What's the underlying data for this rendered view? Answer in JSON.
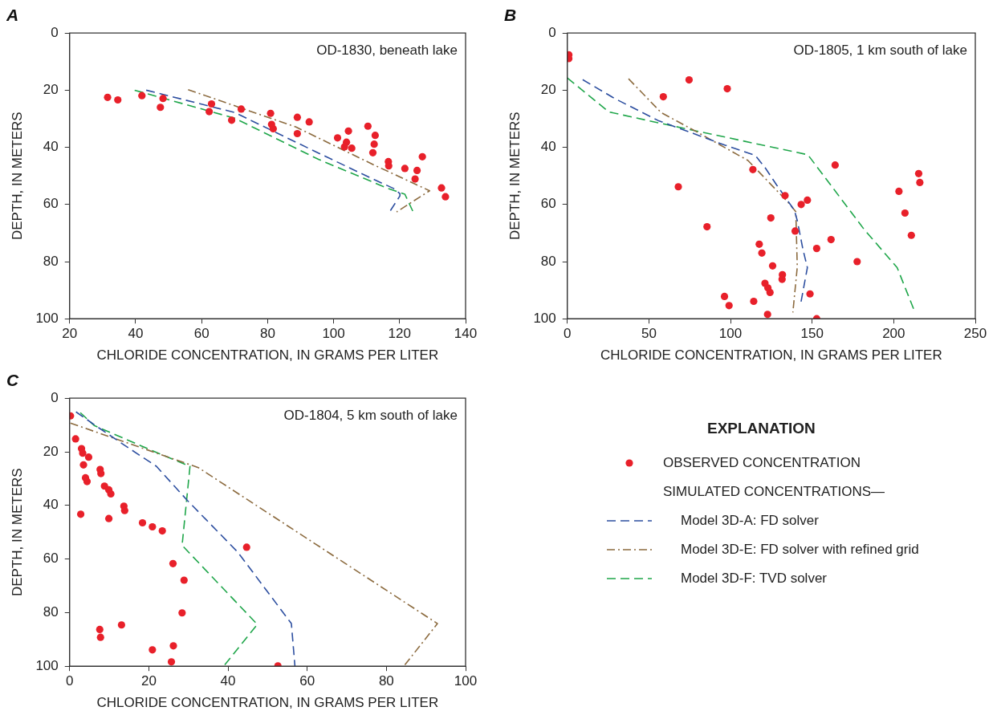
{
  "chart_data": [
    {
      "type": "scatter",
      "title": "A",
      "subtitle": "OD-1830, beneath lake",
      "xlabel": "CHLORIDE CONCENTRATION, IN GRAMS PER LITER",
      "ylabel": "DEPTH, IN METERS",
      "xlim": [
        20,
        140
      ],
      "xticks": [
        20,
        40,
        60,
        80,
        100,
        120,
        140
      ],
      "ylim": [
        100,
        0
      ],
      "yticks": [
        0,
        20,
        40,
        60,
        80,
        100
      ],
      "series": [
        {
          "marker": "circle",
          "color": "#e8202a",
          "x": [
            31.5,
            34.6,
            41.9,
            48.3,
            47.5,
            63.0,
            62.3,
            69.1,
            72.0,
            80.9,
            81.2,
            81.7,
            89.0,
            89.0,
            92.6,
            101.2,
            104.5,
            103.9,
            103.3,
            105.5,
            110.4,
            112.6,
            112.3,
            111.9,
            116.6,
            116.7,
            121.6,
            125.3,
            126.9,
            124.7,
            132.7,
            133.9
          ],
          "values": [
            22.5,
            23.4,
            21.9,
            22.9,
            26.0,
            24.8,
            27.5,
            30.5,
            26.6,
            28.1,
            32.0,
            33.5,
            29.5,
            35.2,
            31.1,
            36.7,
            34.3,
            38.2,
            39.8,
            40.3,
            32.6,
            35.8,
            38.9,
            41.9,
            45.0,
            46.5,
            47.4,
            48.1,
            43.3,
            51.1,
            54.2,
            57.3
          ]
        },
        {
          "type": "line",
          "line_style": "dashed",
          "color": "#2d4fa0",
          "x": [
            43.2,
            70.0,
            95.4,
            112.3,
            118.2,
            120.1,
            120.1,
            116.8
          ],
          "values": [
            20.0,
            27.8,
            42.0,
            51.3,
            54.4,
            56.2,
            57.0,
            62.9
          ]
        },
        {
          "type": "line",
          "line_style": "dashdot",
          "color": "#8c6b3f",
          "x": [
            55.9,
            88.6,
            112.3,
            129.1,
            119.1
          ],
          "values": [
            19.8,
            32.9,
            46.2,
            55.2,
            62.6
          ]
        },
        {
          "type": "line",
          "line_style": "dashed",
          "color": "#1fa64a",
          "x": [
            39.7,
            70.0,
            95.4,
            116.5,
            121.6,
            124.1
          ],
          "values": [
            20.0,
            29.8,
            44.2,
            54.4,
            56.4,
            62.6
          ]
        }
      ]
    },
    {
      "type": "scatter",
      "title": "B",
      "subtitle": "OD-1805, 1 km south of lake",
      "xlabel": "CHLORIDE CONCENTRATION, IN GRAMS PER LITER",
      "ylabel": "DEPTH, IN METERS",
      "xlim": [
        0,
        250
      ],
      "xticks": [
        0,
        50,
        100,
        150,
        200,
        250
      ],
      "ylim": [
        100,
        0
      ],
      "yticks": [
        0,
        20,
        40,
        60,
        80,
        100
      ],
      "series": [
        {
          "marker": "circle",
          "color": "#e8202a",
          "x": [
            0.9,
            0.9,
            74.6,
            98.0,
            58.8,
            164.1,
            113.7,
            68.0,
            215.3,
            216.0,
            203.2,
            133.4,
            147.1,
            143.3,
            124.7,
            206.9,
            85.6,
            139.6,
            210.8,
            161.6,
            117.6,
            152.8,
            119.2,
            177.6,
            125.8,
            131.8,
            131.6,
            121.1,
            122.9,
            124.2,
            148.7,
            96.3,
            114.2,
            99.1,
            122.7,
            152.8
          ],
          "values": [
            7.6,
            8.9,
            16.4,
            19.5,
            22.3,
            46.2,
            47.8,
            53.8,
            49.2,
            52.3,
            55.4,
            56.9,
            58.5,
            60.0,
            64.7,
            63.0,
            67.8,
            69.3,
            70.8,
            72.3,
            73.9,
            75.4,
            77.0,
            80.0,
            81.5,
            84.6,
            86.2,
            87.6,
            89.2,
            90.8,
            91.3,
            92.2,
            93.9,
            95.4,
            98.5,
            100.0
          ]
        },
        {
          "type": "line",
          "line_style": "dashed",
          "color": "#2d4fa0",
          "x": [
            9.4,
            29.0,
            55.6,
            96.4,
            115.1,
            121.3,
            128.4,
            139.1,
            140.9,
            144.4,
            147.1,
            143.0
          ],
          "values": [
            16.3,
            22.9,
            30.6,
            39.2,
            42.8,
            47.2,
            53.3,
            62.0,
            65.6,
            75.8,
            82.1,
            94.7
          ]
        },
        {
          "type": "line",
          "line_style": "dashdot",
          "color": "#8c6b3f",
          "x": [
            37.5,
            57.4,
            78.7,
            110.7,
            135.5,
            140.0,
            140.9,
            138.2
          ],
          "values": [
            16.0,
            27.8,
            34.4,
            44.6,
            59.4,
            62.5,
            81.9,
            97.8
          ]
        },
        {
          "type": "line",
          "line_style": "dashed",
          "color": "#1fa64a",
          "x": [
            0,
            25.4,
            55.6,
            147.4,
            181.7,
            202.1,
            212.3
          ],
          "values": [
            15.7,
            27.6,
            31.4,
            42.6,
            68.6,
            82.1,
            96.7
          ]
        }
      ]
    },
    {
      "type": "scatter",
      "title": "C",
      "subtitle": "OD-1804, 5 km south of lake",
      "xlabel": "CHLORIDE CONCENTRATION, IN GRAMS PER LITER",
      "ylabel": "DEPTH, IN METERS",
      "xlim": [
        0,
        100
      ],
      "xticks": [
        0,
        20,
        40,
        60,
        80,
        100
      ],
      "ylim": [
        100,
        0
      ],
      "yticks": [
        0,
        20,
        40,
        60,
        80,
        100
      ],
      "legend": "right",
      "legend_title": "EXPLANATION",
      "annotations": [
        "SIMULATED CONCENTRATIONS—"
      ],
      "series": [
        {
          "name": "OBSERVED CONCENTRATION",
          "marker": "circle",
          "color": "#e8202a",
          "x": [
            0.2,
            1.5,
            3.0,
            3.3,
            4.8,
            3.5,
            7.7,
            7.9,
            4.0,
            4.4,
            8.8,
            9.9,
            10.4,
            13.7,
            13.9,
            2.8,
            9.9,
            18.4,
            20.9,
            23.4,
            44.7,
            26.1,
            28.9,
            28.4,
            13.1,
            7.6,
            7.8,
            20.9,
            26.2,
            25.7,
            52.6
          ],
          "values": [
            6.6,
            15.2,
            18.8,
            20.5,
            22.0,
            24.9,
            26.6,
            28.1,
            29.7,
            31.1,
            32.8,
            34.2,
            35.7,
            40.3,
            41.9,
            43.3,
            44.9,
            46.5,
            48.0,
            49.5,
            55.6,
            61.7,
            67.9,
            80.1,
            84.6,
            86.3,
            89.2,
            93.9,
            92.4,
            98.4,
            99.9
          ]
        },
        {
          "name": "Model 3D-A: FD solver",
          "type": "line",
          "line_style": "dashed",
          "color": "#2d4fa0",
          "x": [
            1.6,
            7.0,
            14.1,
            21.9,
            29.7,
            42.5,
            56.0,
            56.9
          ],
          "values": [
            5.1,
            10.7,
            17.8,
            25.4,
            38.1,
            57.5,
            84.1,
            100
          ]
        },
        {
          "name": "Model 3D-E: FD solver with refined grid",
          "type": "line",
          "line_style": "dashdot",
          "color": "#8c6b3f",
          "x": [
            0.2,
            32.5,
            92.9,
            84.4
          ],
          "values": [
            9.3,
            25.9,
            84.1,
            100
          ]
        },
        {
          "name": "Model 3D-F: TVD solver",
          "type": "line",
          "line_style": "dashed",
          "color": "#1fa64a",
          "x": [
            2.7,
            6.2,
            21.2,
            30.4,
            28.4,
            47.4,
            38.9
          ],
          "values": [
            5.4,
            10.2,
            19.8,
            25.4,
            54.9,
            84.4,
            100
          ]
        }
      ]
    }
  ]
}
